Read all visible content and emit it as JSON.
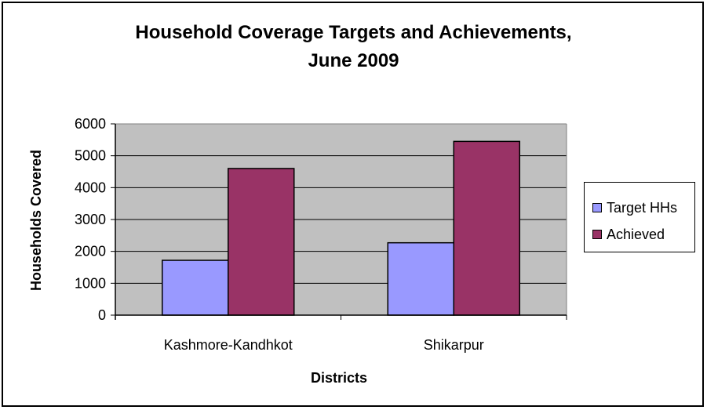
{
  "chart_data": {
    "type": "bar",
    "title_line1": "Household Coverage Targets and Achievements,",
    "title_line2": "June 2009",
    "xlabel": "Districts",
    "ylabel": "Households Covered",
    "categories": [
      "Kashmore-Kandhkot",
      "Shikarpur"
    ],
    "series": [
      {
        "name": "Target HHs",
        "values": [
          1720,
          2270
        ],
        "color": "#9999ff"
      },
      {
        "name": "Achieved",
        "values": [
          4600,
          5450
        ],
        "color": "#993366"
      }
    ],
    "ylim": [
      0,
      6000
    ],
    "yticks": [
      0,
      1000,
      2000,
      3000,
      4000,
      5000,
      6000
    ],
    "grid": true,
    "plot_background": "#c0c0c0",
    "legend_position": "right"
  }
}
